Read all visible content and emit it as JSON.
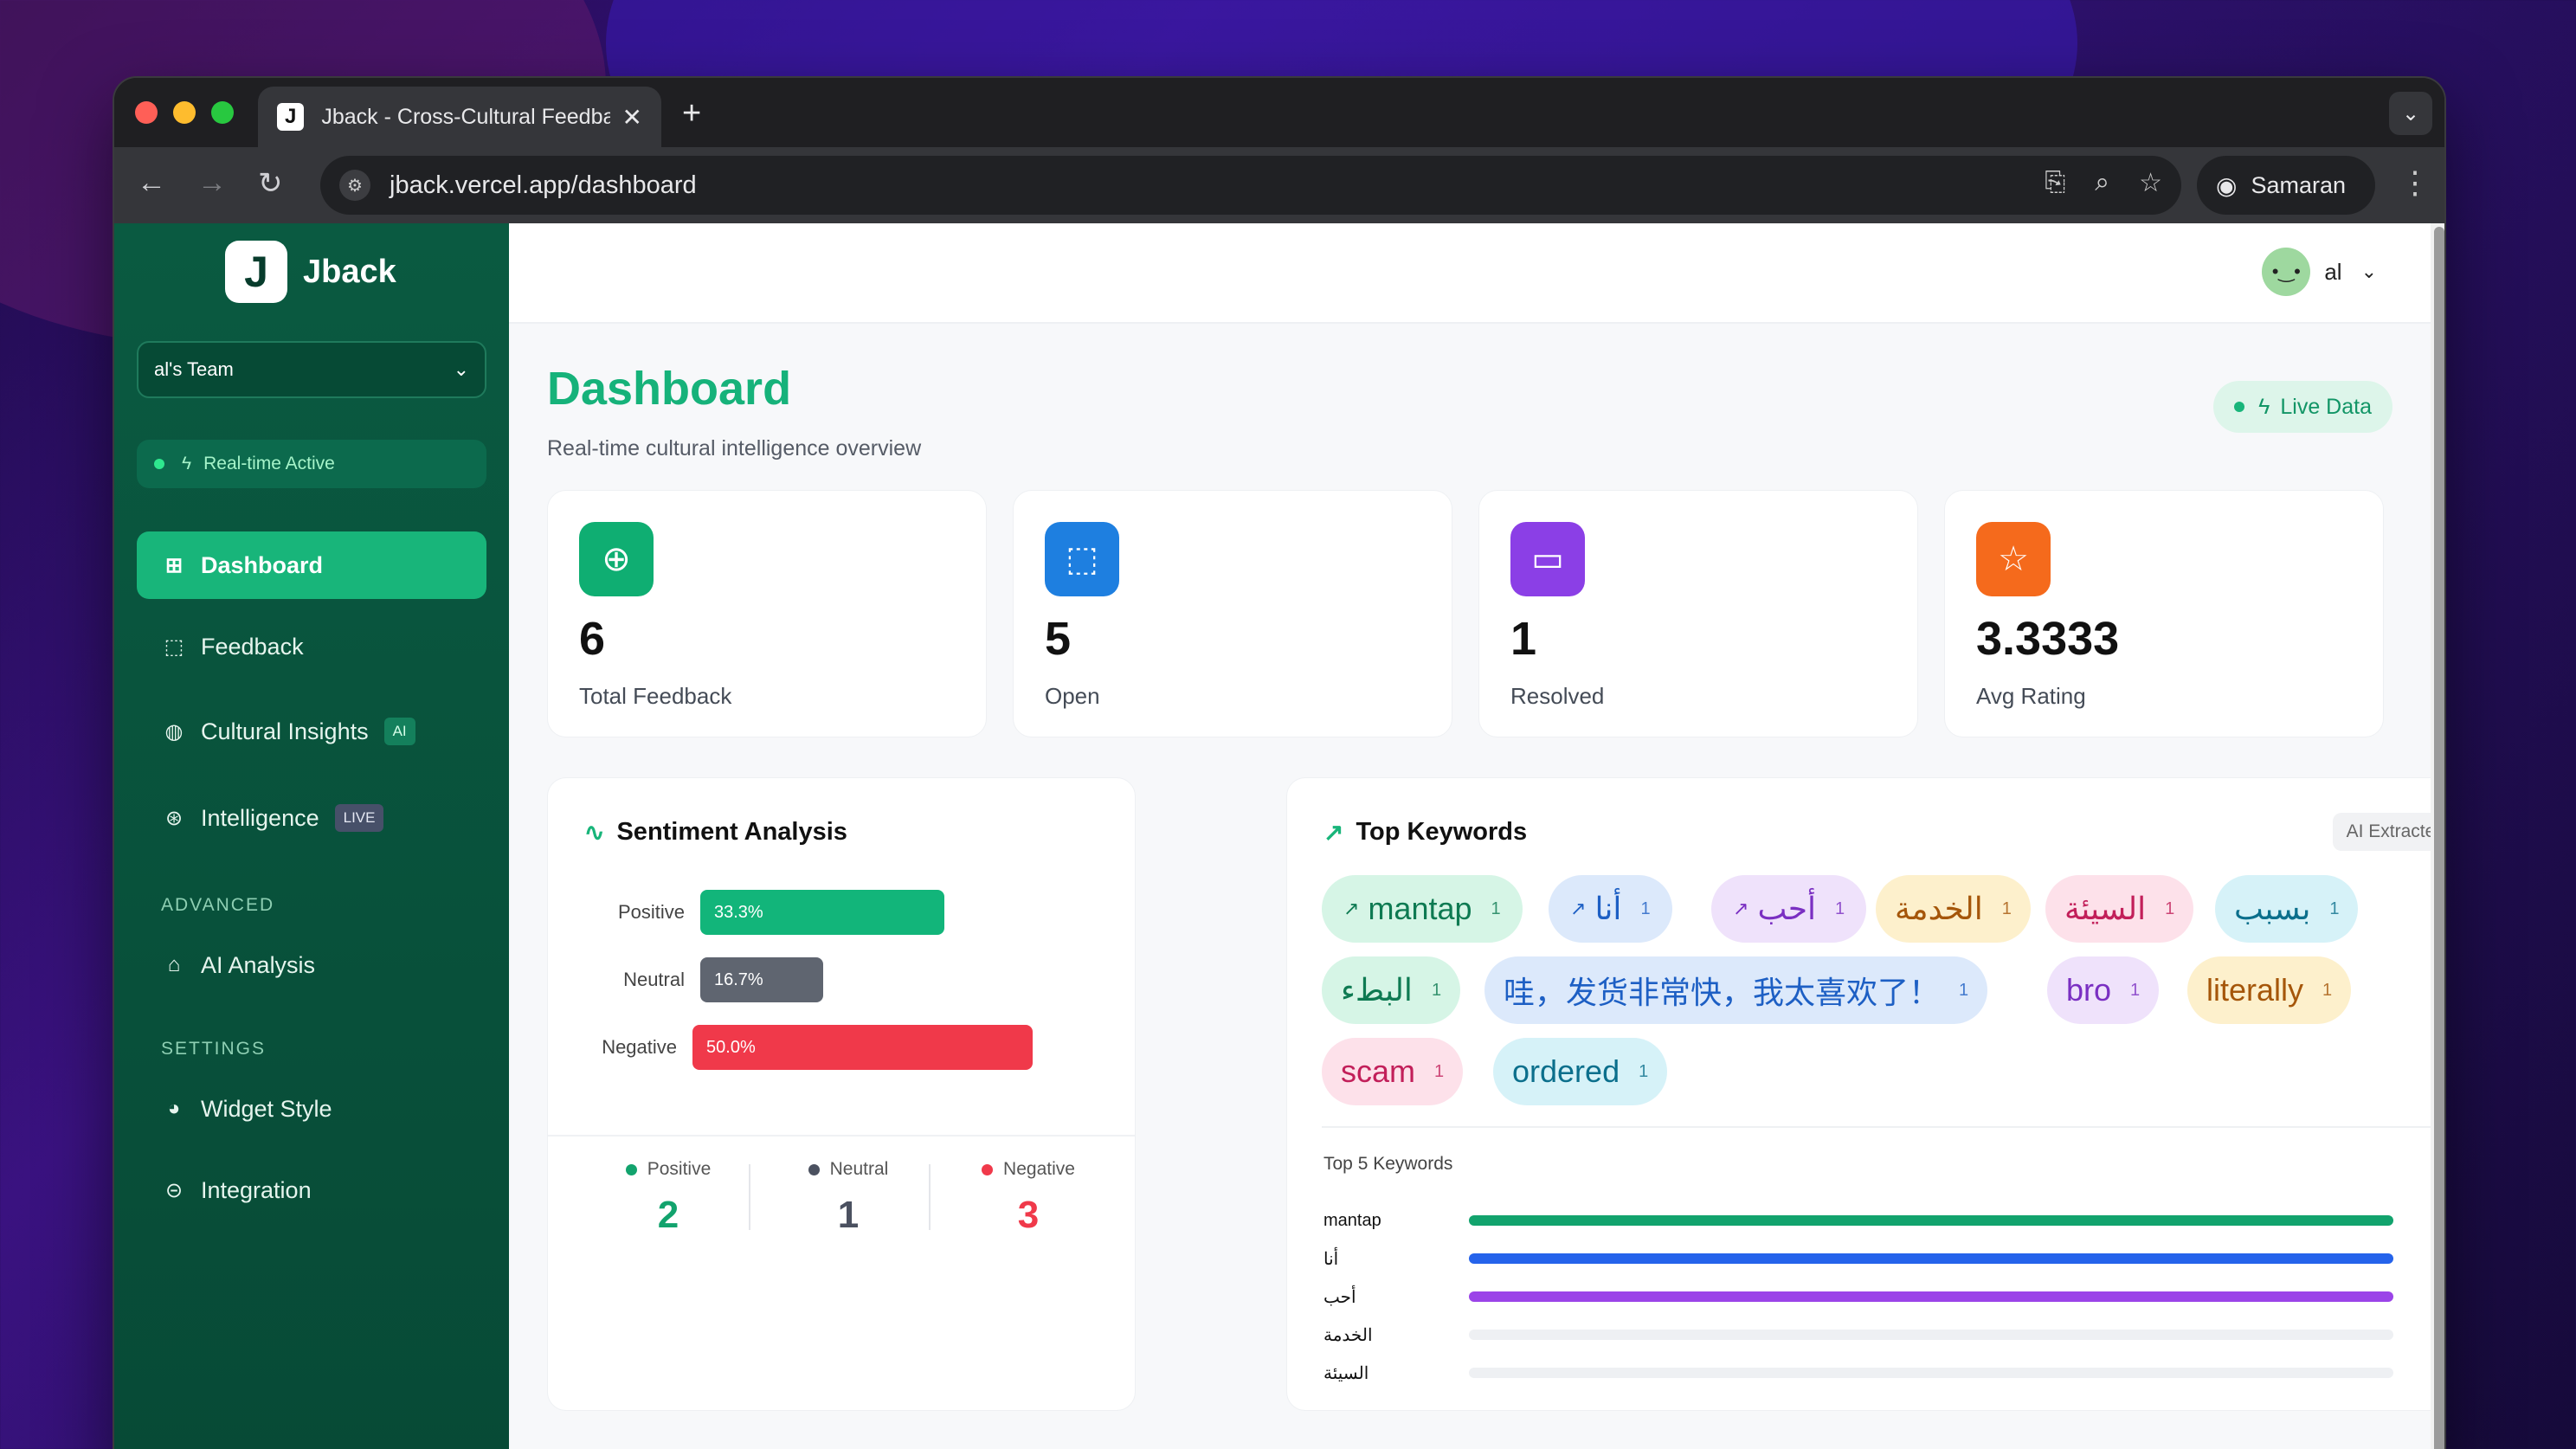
{
  "browser": {
    "tab_favicon": "J",
    "tab_title": "Jback - Cross-Cultural Feedback",
    "tab_close": "✕",
    "new_tab": "+",
    "url": "jback.vercel.app/dashboard",
    "profile_name": "Samaran"
  },
  "sidebar": {
    "logo_mark": "J",
    "logo_text": "Jback",
    "team": "al's Team",
    "status": "Real-time Active",
    "items": [
      {
        "label": "Dashboard",
        "icon": "grid-icon",
        "glyph": "⊞"
      },
      {
        "label": "Feedback",
        "icon": "feedback-icon",
        "glyph": "⬚"
      },
      {
        "label": "Cultural Insights",
        "icon": "globe-icon",
        "glyph": "◍",
        "badge": "AI"
      },
      {
        "label": "Intelligence",
        "icon": "brain-icon",
        "glyph": "⊛",
        "badge": "LIVE"
      }
    ],
    "advanced_label": "ADVANCED",
    "advanced_items": [
      {
        "label": "AI Analysis",
        "icon": "bot-icon",
        "glyph": "⌂"
      }
    ],
    "settings_label": "SETTINGS",
    "settings_items": [
      {
        "label": "Widget Style",
        "icon": "palette-icon",
        "glyph": "◕"
      },
      {
        "label": "Integration",
        "icon": "link-icon",
        "glyph": "⊝"
      }
    ]
  },
  "header": {
    "user": "al"
  },
  "page": {
    "title": "Dashboard",
    "subtitle": "Real-time cultural intelligence overview",
    "live_label": "Live Data"
  },
  "stats": [
    {
      "value": "6",
      "label": "Total Feedback",
      "icon": "message-plus-icon",
      "glyph": "⊕",
      "color": "#0fae72"
    },
    {
      "value": "5",
      "label": "Open",
      "icon": "message-dashed-icon",
      "glyph": "⬚",
      "color": "#1e7fe0"
    },
    {
      "value": "1",
      "label": "Resolved",
      "icon": "message-icon",
      "glyph": "▭",
      "color": "#8b3fe6"
    },
    {
      "value": "3.3333",
      "label": "Avg Rating",
      "icon": "star-icon",
      "glyph": "☆",
      "color": "#f56a1c"
    }
  ],
  "sentiment": {
    "title": "Sentiment Analysis",
    "rows": [
      {
        "label": "Positive",
        "pct": "33.3%",
        "value": 0.333,
        "color": "#12b57a"
      },
      {
        "label": "Neutral",
        "pct": "16.7%",
        "value": 0.167,
        "color": "#5f6570"
      },
      {
        "label": "Negative",
        "pct": "50.0%",
        "value": 0.5,
        "color": "#f0394a"
      }
    ],
    "summary": [
      {
        "label": "Positive",
        "count": "2",
        "color": "#12a36d"
      },
      {
        "label": "Neutral",
        "count": "1",
        "color": "#4b5160"
      },
      {
        "label": "Negative",
        "count": "3",
        "color": "#f0394a"
      }
    ]
  },
  "keywords": {
    "title": "Top Keywords",
    "badge": "AI Extracted",
    "chips": [
      {
        "text": "mantap",
        "count": "1",
        "trend": true,
        "bg": "#d6f5e6",
        "fg": "#0e7a52"
      },
      {
        "text": "أنا",
        "count": "1",
        "trend": true,
        "bg": "#dce9fb",
        "fg": "#1d5fc4"
      },
      {
        "text": "أحب",
        "count": "1",
        "trend": true,
        "bg": "#efe2fb",
        "fg": "#7a2fc2"
      },
      {
        "text": "الخدمة",
        "count": "1",
        "trend": false,
        "bg": "#fdf0cc",
        "fg": "#a5560a"
      },
      {
        "text": "السيئة",
        "count": "1",
        "trend": false,
        "bg": "#fde1ea",
        "fg": "#c21f5a"
      },
      {
        "text": "بسبب",
        "count": "1",
        "trend": false,
        "bg": "#d6f2f8",
        "fg": "#0b6f8c"
      },
      {
        "text": "البطء",
        "count": "1",
        "trend": false,
        "bg": "#d6f5e6",
        "fg": "#0e7a52"
      },
      {
        "text": "哇，发货非常快，我太喜欢了！",
        "count": "1",
        "trend": false,
        "bg": "#dce9fb",
        "fg": "#1d5fc4"
      },
      {
        "text": "bro",
        "count": "1",
        "trend": false,
        "bg": "#efe2fb",
        "fg": "#7a2fc2"
      },
      {
        "text": "literally",
        "count": "1",
        "trend": false,
        "bg": "#fdf0cc",
        "fg": "#a5560a"
      },
      {
        "text": "scam",
        "count": "1",
        "trend": false,
        "bg": "#fde1ea",
        "fg": "#c21f5a"
      },
      {
        "text": "ordered",
        "count": "1",
        "trend": false,
        "bg": "#d6f2f8",
        "fg": "#0b6f8c"
      }
    ],
    "top5_label": "Top 5 Keywords",
    "top5": [
      {
        "name": "mantap",
        "count": "1",
        "value": 1,
        "color": "#12a36d"
      },
      {
        "name": "أنا",
        "count": "1",
        "value": 1,
        "color": "#2563eb"
      },
      {
        "name": "أحب",
        "count": "1",
        "value": 1,
        "color": "#9b44e8"
      },
      {
        "name": "الخدمة",
        "count": "1",
        "value": 0,
        "color": "#eef0f3"
      },
      {
        "name": "السيئة",
        "count": "1",
        "value": 0,
        "color": "#eef0f3"
      }
    ]
  }
}
